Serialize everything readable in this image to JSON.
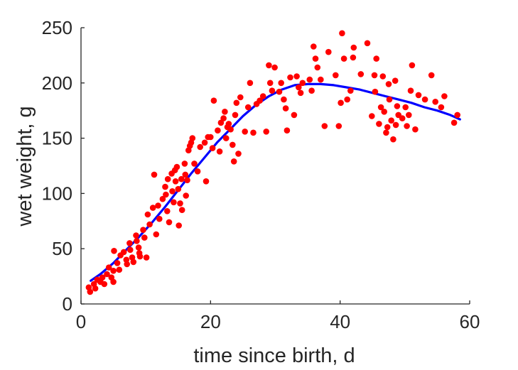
{
  "chart_data": {
    "type": "scatter",
    "title": "",
    "xlabel": "time since birth, d",
    "ylabel": "wet weight, g",
    "xlim": [
      0,
      60
    ],
    "ylim": [
      0,
      250
    ],
    "xticks": [
      "0",
      "20",
      "40",
      "60"
    ],
    "yticks": [
      "0",
      "50",
      "100",
      "150",
      "200",
      "250"
    ],
    "grid": false,
    "legend": "none",
    "colors": {
      "points": "#ff0000",
      "fit": "#0000ff",
      "axes": "#262626"
    },
    "series": [
      {
        "kind": "points",
        "points": [
          [
            1.2,
            15
          ],
          [
            1.4,
            11
          ],
          [
            2.0,
            18
          ],
          [
            2.2,
            14
          ],
          [
            2.5,
            22
          ],
          [
            3.0,
            20
          ],
          [
            3.3,
            24
          ],
          [
            3.6,
            18
          ],
          [
            4.0,
            27
          ],
          [
            4.3,
            33
          ],
          [
            4.7,
            24
          ],
          [
            5.0,
            30
          ],
          [
            5.0,
            20
          ],
          [
            5.1,
            48
          ],
          [
            5.6,
            37
          ],
          [
            5.9,
            31
          ],
          [
            6.1,
            44
          ],
          [
            6.6,
            47
          ],
          [
            7.0,
            40
          ],
          [
            7.1,
            36
          ],
          [
            7.5,
            55
          ],
          [
            7.6,
            49
          ],
          [
            7.9,
            42
          ],
          [
            8.1,
            38
          ],
          [
            8.5,
            62
          ],
          [
            8.6,
            57
          ],
          [
            8.9,
            51
          ],
          [
            9.0,
            46
          ],
          [
            9.1,
            43
          ],
          [
            9.6,
            67
          ],
          [
            9.8,
            60
          ],
          [
            10.1,
            42
          ],
          [
            10.3,
            81
          ],
          [
            10.6,
            72
          ],
          [
            11.1,
            87
          ],
          [
            11.3,
            117
          ],
          [
            11.6,
            63
          ],
          [
            11.9,
            89
          ],
          [
            12.1,
            77
          ],
          [
            12.6,
            95
          ],
          [
            13.0,
            106
          ],
          [
            13.1,
            99
          ],
          [
            13.3,
            84
          ],
          [
            13.4,
            113
          ],
          [
            13.6,
            74
          ],
          [
            14.0,
            118
          ],
          [
            14.1,
            102
          ],
          [
            14.3,
            92
          ],
          [
            14.5,
            121
          ],
          [
            14.6,
            111
          ],
          [
            14.8,
            124
          ],
          [
            15.0,
            104
          ],
          [
            15.1,
            71
          ],
          [
            15.3,
            91
          ],
          [
            15.5,
            113
          ],
          [
            15.6,
            85
          ],
          [
            16.0,
            127
          ],
          [
            16.1,
            117
          ],
          [
            16.2,
            98
          ],
          [
            16.4,
            112
          ],
          [
            16.6,
            139
          ],
          [
            16.8,
            143
          ],
          [
            17.0,
            146
          ],
          [
            17.2,
            150
          ],
          [
            17.5,
            127
          ],
          [
            18.0,
            120
          ],
          [
            18.4,
            142
          ],
          [
            19.1,
            146
          ],
          [
            19.3,
            111
          ],
          [
            19.6,
            151
          ],
          [
            20.0,
            151
          ],
          [
            20.3,
            141
          ],
          [
            20.5,
            184
          ],
          [
            21.1,
            157
          ],
          [
            21.4,
            138
          ],
          [
            21.6,
            164
          ],
          [
            22.0,
            168
          ],
          [
            22.2,
            174
          ],
          [
            22.4,
            150
          ],
          [
            22.6,
            160
          ],
          [
            22.8,
            163
          ],
          [
            23.1,
            158
          ],
          [
            23.4,
            144
          ],
          [
            23.6,
            129
          ],
          [
            23.8,
            171
          ],
          [
            24.0,
            182
          ],
          [
            24.3,
            136
          ],
          [
            24.6,
            187
          ],
          [
            25.3,
            156
          ],
          [
            25.8,
            178
          ],
          [
            26.1,
            200
          ],
          [
            26.6,
            155
          ],
          [
            27.1,
            181
          ],
          [
            27.6,
            184
          ],
          [
            28.1,
            188
          ],
          [
            28.6,
            156
          ],
          [
            29.0,
            216
          ],
          [
            29.2,
            200
          ],
          [
            29.5,
            193
          ],
          [
            29.9,
            214
          ],
          [
            30.6,
            192
          ],
          [
            30.9,
            200
          ],
          [
            31.3,
            185
          ],
          [
            31.6,
            177
          ],
          [
            31.8,
            157
          ],
          [
            32.3,
            205
          ],
          [
            32.9,
            171
          ],
          [
            33.3,
            206
          ],
          [
            33.6,
            196
          ],
          [
            33.9,
            191
          ],
          [
            34.2,
            200
          ],
          [
            35.3,
            203
          ],
          [
            35.6,
            193
          ],
          [
            35.9,
            233
          ],
          [
            36.2,
            222
          ],
          [
            36.5,
            214
          ],
          [
            37.0,
            203
          ],
          [
            37.6,
            161
          ],
          [
            38.2,
            228
          ],
          [
            39.3,
            207
          ],
          [
            39.8,
            161
          ],
          [
            40.1,
            182
          ],
          [
            40.3,
            245
          ],
          [
            40.6,
            222
          ],
          [
            41.1,
            185
          ],
          [
            41.6,
            193
          ],
          [
            42.0,
            223
          ],
          [
            42.1,
            232
          ],
          [
            43.2,
            208
          ],
          [
            44.2,
            236
          ],
          [
            44.9,
            170
          ],
          [
            45.3,
            207
          ],
          [
            45.4,
            192
          ],
          [
            45.6,
            222
          ],
          [
            46.0,
            163
          ],
          [
            46.3,
            178
          ],
          [
            46.6,
            206
          ],
          [
            46.8,
            174
          ],
          [
            47.1,
            155
          ],
          [
            47.3,
            160
          ],
          [
            47.5,
            199
          ],
          [
            47.6,
            185
          ],
          [
            47.9,
            166
          ],
          [
            48.2,
            149
          ],
          [
            48.5,
            202
          ],
          [
            48.6,
            162
          ],
          [
            48.8,
            179
          ],
          [
            49.0,
            171
          ],
          [
            49.6,
            168
          ],
          [
            50.1,
            178
          ],
          [
            50.3,
            161
          ],
          [
            50.6,
            171
          ],
          [
            50.9,
            193
          ],
          [
            51.1,
            216
          ],
          [
            51.6,
            158
          ],
          [
            52.1,
            189
          ],
          [
            53.1,
            185
          ],
          [
            54.1,
            207
          ],
          [
            54.7,
            183
          ],
          [
            55.6,
            178
          ],
          [
            56.1,
            188
          ],
          [
            57.6,
            164
          ],
          [
            58.1,
            171
          ]
        ]
      },
      {
        "kind": "fit",
        "points": [
          [
            1.5,
            21
          ],
          [
            3,
            27
          ],
          [
            5,
            37
          ],
          [
            7,
            49
          ],
          [
            9,
            61
          ],
          [
            11,
            74
          ],
          [
            13,
            88
          ],
          [
            15,
            103
          ],
          [
            17,
            118
          ],
          [
            19,
            132
          ],
          [
            21,
            146
          ],
          [
            23,
            158
          ],
          [
            25,
            170
          ],
          [
            27,
            180
          ],
          [
            29,
            188
          ],
          [
            31,
            194
          ],
          [
            33,
            198
          ],
          [
            35,
            199
          ],
          [
            37,
            199
          ],
          [
            39,
            198
          ],
          [
            41,
            196
          ],
          [
            43,
            194
          ],
          [
            45,
            191
          ],
          [
            47,
            188
          ],
          [
            49,
            185
          ],
          [
            51,
            182
          ],
          [
            53,
            178
          ],
          [
            55,
            175
          ],
          [
            57,
            171
          ],
          [
            58.5,
            167
          ]
        ]
      }
    ]
  }
}
